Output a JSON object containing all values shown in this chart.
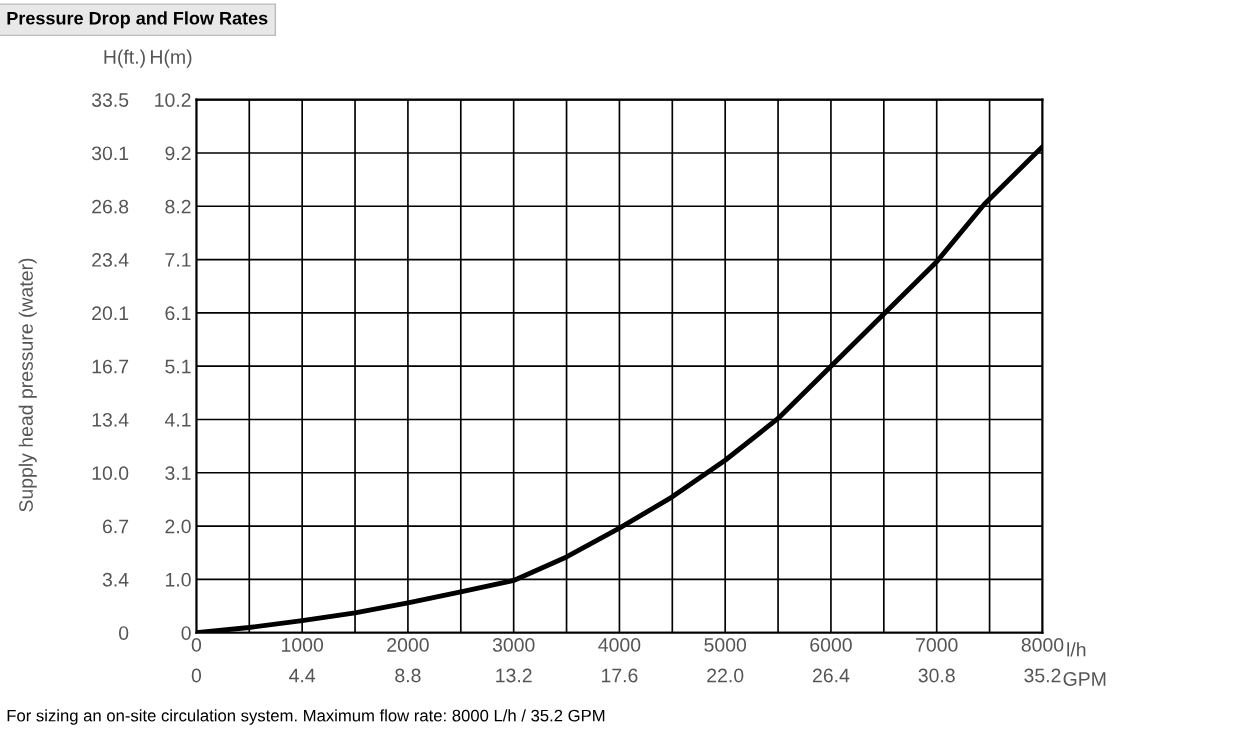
{
  "chart_data": {
    "type": "line",
    "title": "Pressure Drop and Flow Rates",
    "xlabel": "l/h",
    "ylabel": "H(m)",
    "y2label": "H(ft.)",
    "x2label": "GPM",
    "annotations": [
      "Supply head pressure (water)",
      "For sizing an on-site circulation system. Maximum flow rate: 8000 L/h / 35.2 GPM"
    ],
    "x": [
      0,
      500,
      1000,
      1500,
      2000,
      2500,
      3000,
      3500,
      4000,
      4500,
      5000,
      5500,
      6000,
      6500,
      7000,
      7450,
      8000
    ],
    "series": [
      {
        "color": "#000000",
        "values": [
          0,
          0.1,
          0.23,
          0.38,
          0.57,
          0.78,
          1.0,
          1.45,
          2.0,
          2.6,
          3.3,
          4.1,
          5.1,
          6.1,
          7.1,
          8.2,
          9.3
        ]
      }
    ],
    "xlim": [
      0,
      8000
    ],
    "xticks": [
      0,
      {
        "value": 500,
        "label": null
      },
      1000,
      {
        "value": 1500,
        "label": null
      },
      2000,
      {
        "value": 2500,
        "label": null
      },
      3000,
      {
        "value": 3500,
        "label": null
      },
      4000,
      {
        "value": 4500,
        "label": null
      },
      5000,
      {
        "value": 5500,
        "label": null
      },
      6000,
      {
        "value": 6500,
        "label": null
      },
      7000,
      {
        "value": 7500,
        "label": null
      },
      8000
    ],
    "x2lim": [
      0,
      35.2
    ],
    "x2ticks": [
      0,
      4.4,
      8.8,
      13.2,
      17.6,
      {
        "value": 22,
        "label": "22.0"
      },
      26.4,
      30.8,
      35.2
    ],
    "ylim": [
      0,
      10.2
    ],
    "yticks": [
      0,
      {
        "value": 1.02,
        "label": "1.0"
      },
      {
        "value": 2.04,
        "label": "2.0"
      },
      {
        "value": 3.06,
        "label": "3.1"
      },
      {
        "value": 4.08,
        "label": "4.1"
      },
      5.1,
      {
        "value": 6.12,
        "label": "6.1"
      },
      {
        "value": 7.14,
        "label": "7.1"
      },
      {
        "value": 8.16,
        "label": "8.2"
      },
      {
        "value": 9.18,
        "label": "9.2"
      },
      10.2
    ],
    "y2lim": [
      0,
      33.5
    ],
    "y2ticks": [
      0,
      {
        "value": 3.35,
        "label": "3.4"
      },
      6.7,
      {
        "value": 10.05,
        "label": "10.0"
      },
      13.4,
      {
        "value": 16.75,
        "label": "16.7"
      },
      {
        "value": 20.1,
        "label": "20.1"
      },
      {
        "value": 23.45,
        "label": "23.4"
      },
      26.8,
      {
        "value": 30.15,
        "label": "30.1"
      },
      33.5
    ],
    "grid": true,
    "legend": false,
    "marker": "none",
    "line_style": "solid"
  }
}
